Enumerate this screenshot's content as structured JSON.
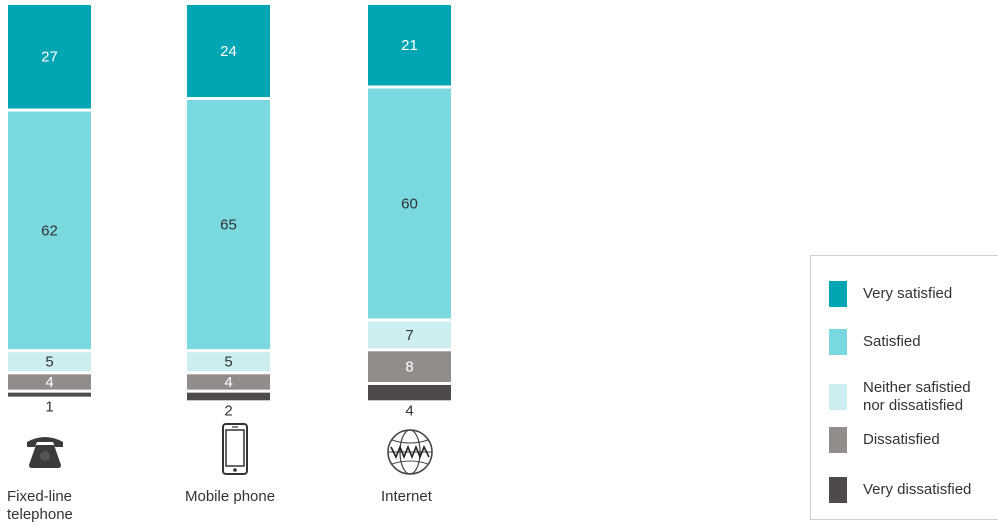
{
  "chart_data": {
    "type": "bar",
    "stacked": true,
    "orientation": "vertical",
    "categories": [
      "Fixed-line telephone",
      "Mobile phone",
      "Internet"
    ],
    "category_labels": [
      [
        "Fixed-line",
        "telephone"
      ],
      [
        "Mobile phone"
      ],
      [
        "Internet"
      ]
    ],
    "icons": [
      "telephone-icon",
      "mobile-phone-icon",
      "globe-www-icon"
    ],
    "series": [
      {
        "name": "Very satisfied",
        "color": "#00a5b4",
        "label_color": "#ffffff",
        "values": [
          27,
          24,
          21
        ]
      },
      {
        "name": "Satisfied",
        "color": "#7ad8df",
        "label_color": "#333333",
        "values": [
          62,
          65,
          60
        ]
      },
      {
        "name": "Neither safistied nor dissatisfied",
        "color": "#cdeef1",
        "label_color": "#333333",
        "values": [
          5,
          5,
          7
        ]
      },
      {
        "name": "Dissatisfied",
        "color": "#928c8b",
        "label_color": "#ffffff",
        "values": [
          4,
          4,
          8
        ]
      },
      {
        "name": "Very dissatisfied",
        "color": "#4e4a49",
        "label_color": "#333333",
        "values": [
          1,
          2,
          4
        ]
      }
    ],
    "legend": {
      "position": "right",
      "items": [
        {
          "lines": [
            "Very satisfied"
          ],
          "color": "#00a5b4"
        },
        {
          "lines": [
            "Satisfied"
          ],
          "color": "#7ad8df"
        },
        {
          "lines": [
            "Neither safistied",
            "nor dissatisfied"
          ],
          "color": "#cdeef1"
        },
        {
          "lines": [
            "Dissatisfied"
          ],
          "color": "#928c8b"
        },
        {
          "lines": [
            "Very dissatisfied"
          ],
          "color": "#4e4a49"
        }
      ]
    },
    "grid": false,
    "axes_visible": false
  }
}
